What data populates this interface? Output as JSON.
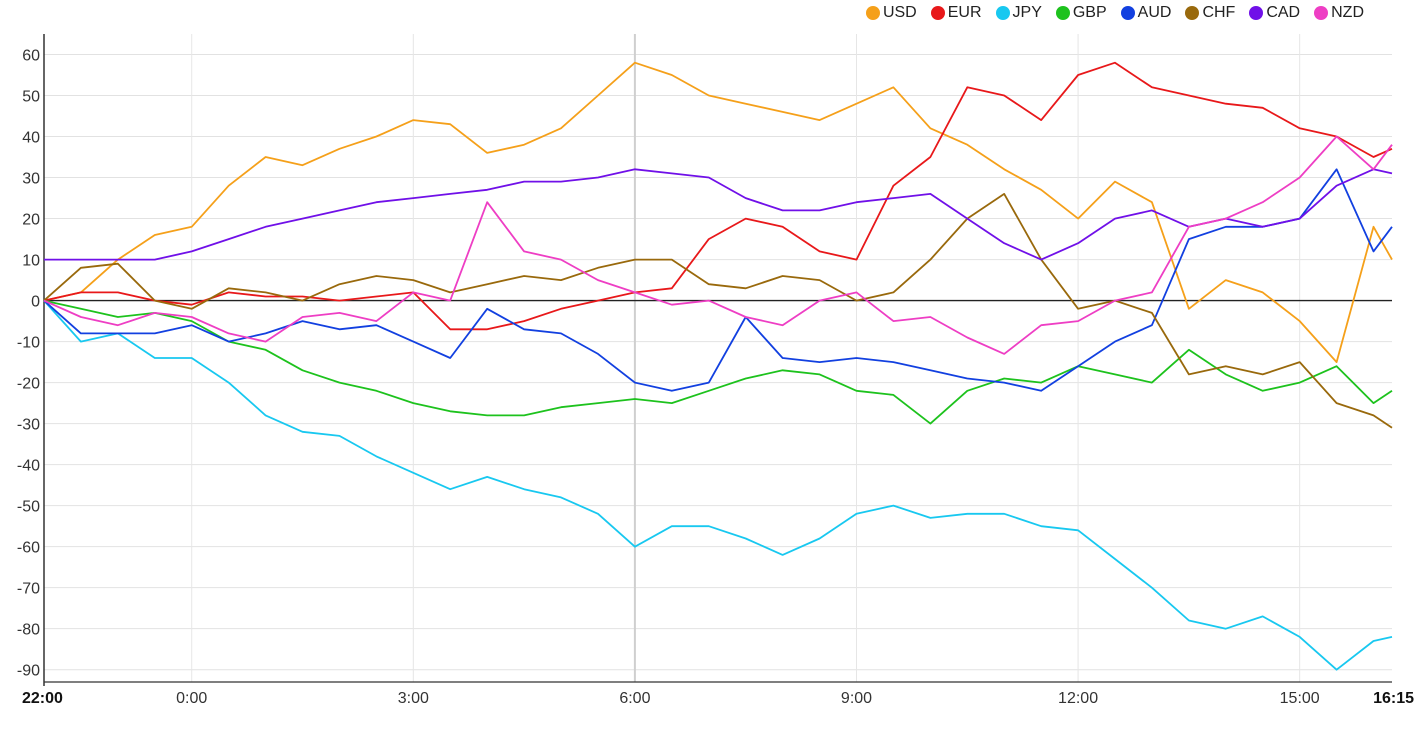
{
  "chart_data": {
    "type": "line",
    "title": "",
    "xlabel": "",
    "ylabel": "",
    "ylim": [
      -93,
      65
    ],
    "x_range_hours": [
      0,
      18.25
    ],
    "y_ticks": [
      60,
      50,
      40,
      30,
      20,
      10,
      0,
      -10,
      -20,
      -30,
      -40,
      -50,
      -60,
      -70,
      -80,
      -90
    ],
    "x_ticks": [
      {
        "label": "22:00",
        "t": 0,
        "bold": true
      },
      {
        "label": "0:00",
        "t": 2,
        "bold": false
      },
      {
        "label": "3:00",
        "t": 5,
        "bold": false
      },
      {
        "label": "6:00",
        "t": 8,
        "bold": false
      },
      {
        "label": "9:00",
        "t": 11,
        "bold": false
      },
      {
        "label": "12:00",
        "t": 14,
        "bold": false
      },
      {
        "label": "15:00",
        "t": 17,
        "bold": false
      },
      {
        "label": "16:15",
        "t": 18.25,
        "bold": true
      }
    ],
    "x_minor_lines": [
      8
    ],
    "grid": true,
    "legend_position": "top-right",
    "series": [
      {
        "name": "USD",
        "color": "#f5a01a",
        "x": [
          0,
          0.5,
          1,
          1.5,
          2,
          2.5,
          3,
          3.5,
          4,
          4.5,
          5,
          5.5,
          6,
          6.5,
          7,
          7.5,
          8,
          8.5,
          9,
          9.5,
          10,
          10.5,
          11,
          11.5,
          12,
          12.5,
          13,
          13.5,
          14,
          14.5,
          15,
          15.5,
          16,
          16.5,
          17,
          17.5,
          18,
          18.25
        ],
        "y": [
          0,
          2,
          10,
          16,
          18,
          28,
          35,
          33,
          37,
          40,
          44,
          43,
          36,
          38,
          42,
          50,
          58,
          55,
          50,
          48,
          46,
          44,
          48,
          52,
          42,
          38,
          32,
          27,
          20,
          29,
          24,
          -2,
          5,
          2,
          -5,
          -15,
          18,
          10
        ]
      },
      {
        "name": "EUR",
        "color": "#e8181a",
        "x": [
          0,
          0.5,
          1,
          1.5,
          2,
          2.5,
          3,
          3.5,
          4,
          4.5,
          5,
          5.5,
          6,
          6.5,
          7,
          7.5,
          8,
          8.5,
          9,
          9.5,
          10,
          10.5,
          11,
          11.5,
          12,
          12.5,
          13,
          13.5,
          14,
          14.5,
          15,
          15.5,
          16,
          16.5,
          17,
          17.5,
          18,
          18.25
        ],
        "y": [
          0,
          2,
          2,
          0,
          -1,
          2,
          1,
          1,
          0,
          1,
          2,
          -7,
          -7,
          -5,
          -2,
          0,
          2,
          3,
          15,
          20,
          18,
          12,
          10,
          28,
          35,
          52,
          50,
          44,
          55,
          58,
          52,
          50,
          48,
          47,
          42,
          40,
          35,
          37
        ]
      },
      {
        "name": "JPY",
        "color": "#18c8f0",
        "x": [
          0,
          0.5,
          1,
          1.5,
          2,
          2.5,
          3,
          3.5,
          4,
          4.5,
          5,
          5.5,
          6,
          6.5,
          7,
          7.5,
          8,
          8.5,
          9,
          9.5,
          10,
          10.5,
          11,
          11.5,
          12,
          12.5,
          13,
          13.5,
          14,
          14.5,
          15,
          15.5,
          16,
          16.5,
          17,
          17.5,
          18,
          18.25
        ],
        "y": [
          0,
          -10,
          -8,
          -14,
          -14,
          -20,
          -28,
          -32,
          -33,
          -38,
          -42,
          -46,
          -43,
          -46,
          -48,
          -52,
          -60,
          -55,
          -55,
          -58,
          -62,
          -58,
          -52,
          -50,
          -53,
          -52,
          -52,
          -55,
          -56,
          -63,
          -70,
          -78,
          -80,
          -77,
          -82,
          -90,
          -83,
          -82
        ]
      },
      {
        "name": "GBP",
        "color": "#1dc21d",
        "x": [
          0,
          0.5,
          1,
          1.5,
          2,
          2.5,
          3,
          3.5,
          4,
          4.5,
          5,
          5.5,
          6,
          6.5,
          7,
          7.5,
          8,
          8.5,
          9,
          9.5,
          10,
          10.5,
          11,
          11.5,
          12,
          12.5,
          13,
          13.5,
          14,
          14.5,
          15,
          15.5,
          16,
          16.5,
          17,
          17.5,
          18,
          18.25
        ],
        "y": [
          0,
          -2,
          -4,
          -3,
          -5,
          -10,
          -12,
          -17,
          -20,
          -22,
          -25,
          -27,
          -28,
          -28,
          -26,
          -25,
          -24,
          -25,
          -22,
          -19,
          -17,
          -18,
          -22,
          -23,
          -30,
          -22,
          -19,
          -20,
          -16,
          -18,
          -20,
          -12,
          -18,
          -22,
          -20,
          -16,
          -25,
          -22
        ]
      },
      {
        "name": "AUD",
        "color": "#1240e0",
        "x": [
          0,
          0.5,
          1,
          1.5,
          2,
          2.5,
          3,
          3.5,
          4,
          4.5,
          5,
          5.5,
          6,
          6.5,
          7,
          7.5,
          8,
          8.5,
          9,
          9.5,
          10,
          10.5,
          11,
          11.5,
          12,
          12.5,
          13,
          13.5,
          14,
          14.5,
          15,
          15.5,
          16,
          16.5,
          17,
          17.5,
          18,
          18.25
        ],
        "y": [
          0,
          -8,
          -8,
          -8,
          -6,
          -10,
          -8,
          -5,
          -7,
          -6,
          -10,
          -14,
          -2,
          -7,
          -8,
          -13,
          -20,
          -22,
          -20,
          -4,
          -14,
          -15,
          -14,
          -15,
          -17,
          -19,
          -20,
          -22,
          -16,
          -10,
          -6,
          15,
          18,
          18,
          20,
          32,
          12,
          18
        ]
      },
      {
        "name": "CHF",
        "color": "#99690c",
        "x": [
          0,
          0.5,
          1,
          1.5,
          2,
          2.5,
          3,
          3.5,
          4,
          4.5,
          5,
          5.5,
          6,
          6.5,
          7,
          7.5,
          8,
          8.5,
          9,
          9.5,
          10,
          10.5,
          11,
          11.5,
          12,
          12.5,
          13,
          13.5,
          14,
          14.5,
          15,
          15.5,
          16,
          16.5,
          17,
          17.5,
          18,
          18.25
        ],
        "y": [
          0,
          8,
          9,
          0,
          -2,
          3,
          2,
          0,
          4,
          6,
          5,
          2,
          4,
          6,
          5,
          8,
          10,
          10,
          4,
          3,
          6,
          5,
          0,
          2,
          10,
          20,
          26,
          10,
          -2,
          0,
          -3,
          -18,
          -16,
          -18,
          -15,
          -25,
          -28,
          -31
        ]
      },
      {
        "name": "CAD",
        "color": "#7010e8",
        "x": [
          0,
          0.5,
          1,
          1.5,
          2,
          2.5,
          3,
          3.5,
          4,
          4.5,
          5,
          5.5,
          6,
          6.5,
          7,
          7.5,
          8,
          8.5,
          9,
          9.5,
          10,
          10.5,
          11,
          11.5,
          12,
          12.5,
          13,
          13.5,
          14,
          14.5,
          15,
          15.5,
          16,
          16.5,
          17,
          17.5,
          18,
          18.25
        ],
        "y": [
          10,
          10,
          10,
          10,
          12,
          15,
          18,
          20,
          22,
          24,
          25,
          26,
          27,
          29,
          29,
          30,
          32,
          31,
          30,
          25,
          22,
          22,
          24,
          25,
          26,
          20,
          14,
          10,
          14,
          20,
          22,
          18,
          20,
          18,
          20,
          28,
          32,
          31
        ]
      },
      {
        "name": "NZD",
        "color": "#ee3ec4",
        "x": [
          0,
          0.5,
          1,
          1.5,
          2,
          2.5,
          3,
          3.5,
          4,
          4.5,
          5,
          5.5,
          6,
          6.5,
          7,
          7.5,
          8,
          8.5,
          9,
          9.5,
          10,
          10.5,
          11,
          11.5,
          12,
          12.5,
          13,
          13.5,
          14,
          14.5,
          15,
          15.5,
          16,
          16.5,
          17,
          17.5,
          18,
          18.25
        ],
        "y": [
          0,
          -4,
          -6,
          -3,
          -4,
          -8,
          -10,
          -4,
          -3,
          -5,
          2,
          0,
          24,
          12,
          10,
          5,
          2,
          -1,
          0,
          -4,
          -6,
          0,
          2,
          -5,
          -4,
          -9,
          -13,
          -6,
          -5,
          0,
          2,
          18,
          20,
          24,
          30,
          40,
          32,
          38
        ]
      }
    ]
  }
}
